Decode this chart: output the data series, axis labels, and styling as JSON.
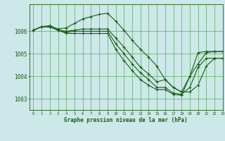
{
  "background_color": "#cce8e8",
  "plot_bg_color": "#cce8e8",
  "line_color": "#1a5c1a",
  "grid_color": "#5aaa5a",
  "xlabel": "Graphe pression niveau de la mer (hPa)",
  "ylim": [
    1002.5,
    1007.2
  ],
  "xlim": [
    -0.5,
    23
  ],
  "yticks": [
    1003,
    1004,
    1005,
    1006
  ],
  "xticks": [
    0,
    1,
    2,
    3,
    4,
    5,
    6,
    7,
    8,
    9,
    10,
    11,
    12,
    13,
    14,
    15,
    16,
    17,
    18,
    19,
    20,
    21,
    22,
    23
  ],
  "series": [
    {
      "x": [
        0,
        1,
        2,
        3,
        4,
        5,
        6,
        7,
        8,
        9,
        10,
        11,
        12,
        13,
        14,
        15,
        16,
        17,
        18,
        19,
        20,
        21,
        22,
        23
      ],
      "y": [
        1006.05,
        1006.2,
        1006.25,
        1006.1,
        1006.15,
        1006.35,
        1006.55,
        1006.65,
        1006.75,
        1006.8,
        1006.45,
        1006.05,
        1005.6,
        1005.2,
        1004.85,
        1004.45,
        1003.85,
        1003.5,
        1003.3,
        1004.0,
        1004.55,
        1005.05,
        1005.1,
        1005.1
      ]
    },
    {
      "x": [
        0,
        1,
        2,
        3,
        4,
        5,
        6,
        7,
        8,
        9,
        10,
        11,
        12,
        13,
        14,
        15,
        16,
        17,
        18,
        19,
        20,
        21,
        22,
        23
      ],
      "y": [
        1006.05,
        1006.2,
        1006.2,
        1006.05,
        1006.0,
        1006.05,
        1006.1,
        1006.1,
        1006.1,
        1006.1,
        1005.7,
        1005.3,
        1004.85,
        1004.4,
        1004.1,
        1003.75,
        1003.85,
        1003.5,
        1003.3,
        1003.3,
        1003.6,
        1004.45,
        1004.8,
        1004.8
      ]
    },
    {
      "x": [
        0,
        1,
        2,
        3,
        4,
        5,
        6,
        7,
        8,
        9,
        10,
        11,
        12,
        13,
        14,
        15,
        16,
        17,
        18,
        19,
        20,
        21,
        22,
        23
      ],
      "y": [
        1006.05,
        1006.2,
        1006.2,
        1006.05,
        1005.95,
        1006.0,
        1006.0,
        1006.0,
        1006.0,
        1006.0,
        1005.45,
        1005.0,
        1004.55,
        1004.15,
        1003.85,
        1003.5,
        1003.5,
        1003.25,
        1003.2,
        1003.5,
        1004.4,
        1004.8,
        1004.8,
        1004.8
      ]
    },
    {
      "x": [
        0,
        1,
        2,
        3,
        4,
        5,
        6,
        7,
        8,
        9,
        10,
        11,
        12,
        13,
        14,
        15,
        16,
        17,
        18,
        19,
        20,
        21,
        22,
        23
      ],
      "y": [
        1006.05,
        1006.2,
        1006.2,
        1006.05,
        1005.9,
        1005.9,
        1005.9,
        1005.9,
        1005.9,
        1005.9,
        1005.2,
        1004.7,
        1004.25,
        1003.85,
        1003.6,
        1003.4,
        1003.4,
        1003.2,
        1003.15,
        1004.0,
        1005.05,
        1005.1,
        1005.1,
        1005.1
      ]
    }
  ]
}
